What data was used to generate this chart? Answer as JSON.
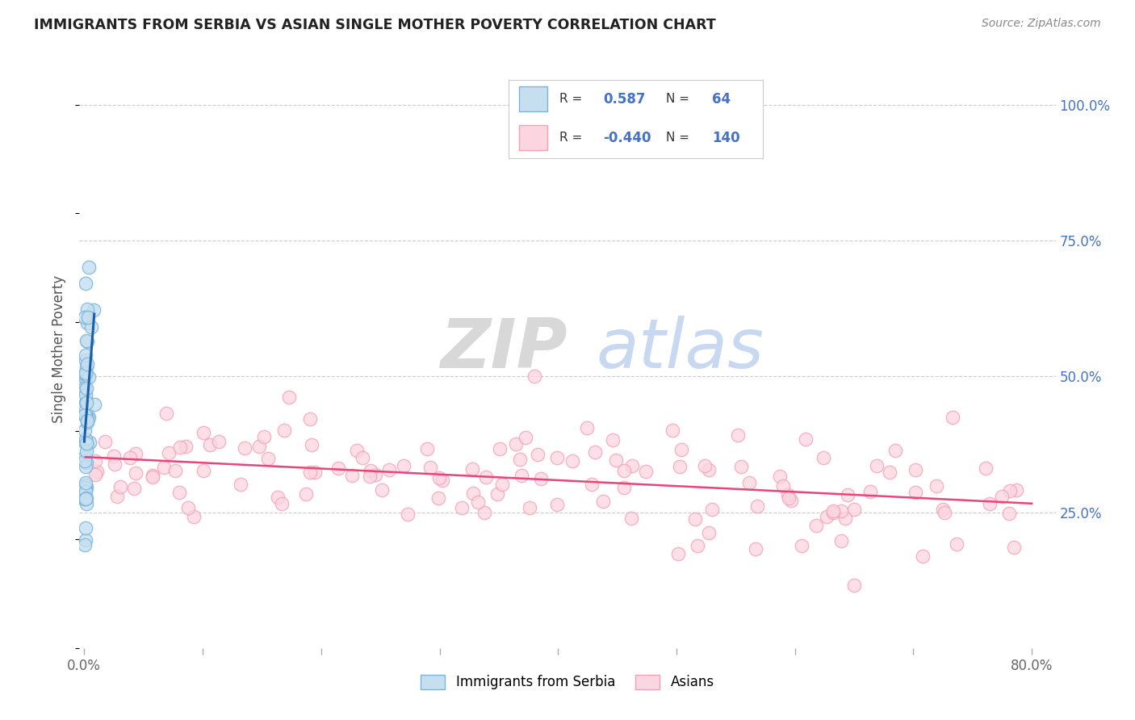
{
  "title": "IMMIGRANTS FROM SERBIA VS ASIAN SINGLE MOTHER POVERTY CORRELATION CHART",
  "source": "Source: ZipAtlas.com",
  "ylabel": "Single Mother Poverty",
  "blue_color": "#7cb4d8",
  "blue_fill": "#c5dff0",
  "pink_color": "#f4a0b5",
  "pink_fill": "#fbd5e0",
  "trend_blue": "#1a5fa8",
  "trend_pink": "#e8457a",
  "watermark_zip": "ZIP",
  "watermark_atlas": "atlas",
  "r_blue": "0.587",
  "n_blue": "64",
  "r_pink": "-0.440",
  "n_pink": "140",
  "legend_text_color": "#333333",
  "legend_value_color": "#4472c4",
  "right_tick_color": "#4472c4",
  "grid_color": "#cccccc",
  "title_color": "#222222",
  "source_color": "#888888"
}
